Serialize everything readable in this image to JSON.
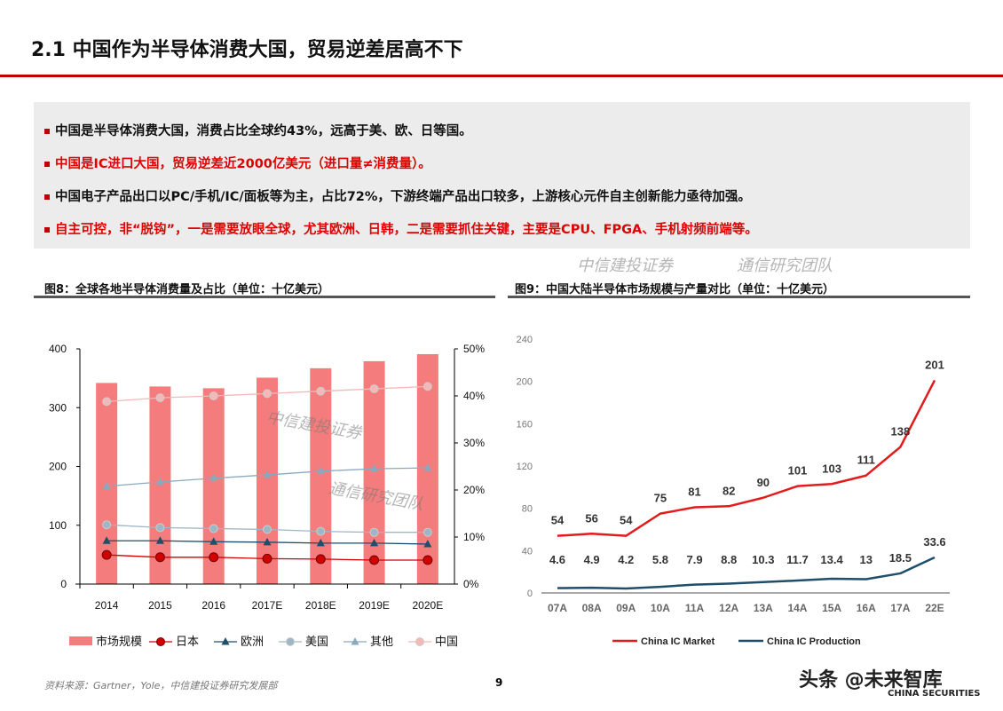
{
  "header": {
    "title": "2.1 中国作为半导体消费大国，贸易逆差居高不下"
  },
  "bullets": [
    {
      "text": "中国是半导体消费大国，消费占比全球约43%，远高于美、欧、日等国。",
      "color": "black"
    },
    {
      "text": "中国是IC进口大国，贸易逆差近2000亿美元（进口量≠消费量）。",
      "color": "red"
    },
    {
      "text": "中国电子产品出口以PC/手机/IC/面板等为主，占比72%，下游终端产品出口较多，上游核心元件自主创新能力亟待加强。",
      "color": "black"
    },
    {
      "text": "自主可控，非“脱钩”，一是需要放眼全球，尤其欧洲、日韩，二是需要抓住关键，主要是CPU、FPGA、手机射频前端等。",
      "color": "red"
    }
  ],
  "figures": {
    "fig8_title": "图8：全球各地半导体消费量及占比（单位：十亿美元）",
    "fig9_title": "图9：中国大陆半导体市场规模与产量对比（单位：十亿美元）"
  },
  "footer": {
    "source": "资料来源：Gartner，Yole，中信建投证券研究发展部",
    "page": "9"
  },
  "watermarks": {
    "w1": "中信建投证券",
    "w2": "通信研究团队",
    "logo": "头条 @未来智库",
    "logo_sub": "CHINA SECURITIES"
  },
  "chart_data": [
    {
      "type": "bar+line",
      "categories": [
        "2014",
        "2015",
        "2016",
        "2017E",
        "2018E",
        "2019E",
        "2020E"
      ],
      "ylim": [
        0,
        400
      ],
      "yticks": [
        "0",
        "100",
        "200",
        "300",
        "400"
      ],
      "y2lim": [
        0,
        50
      ],
      "y2ticks": [
        "0%",
        "10%",
        "20%",
        "30%",
        "40%",
        "50%"
      ],
      "bar_series": {
        "name": "市场规模",
        "values": [
          342,
          336,
          333,
          351,
          367,
          379,
          391
        ],
        "color": "#f47c7c"
      },
      "line_series": [
        {
          "name": "日本",
          "values": [
            6.2,
            5.7,
            5.7,
            5.4,
            5.3,
            5.1,
            5.1
          ],
          "color": "#d00000",
          "marker": "circle"
        },
        {
          "name": "欧洲",
          "values": [
            9.2,
            9.2,
            9.0,
            8.9,
            8.7,
            8.7,
            8.5
          ],
          "color": "#1f4e6b",
          "marker": "triangle"
        },
        {
          "name": "美国",
          "values": [
            12.6,
            12.0,
            11.8,
            11.6,
            11.2,
            11.0,
            11.0
          ],
          "color": "#9fb6c6",
          "marker": "circle"
        },
        {
          "name": "其他",
          "values": [
            20.8,
            21.7,
            22.5,
            23.2,
            24.0,
            24.5,
            24.7
          ],
          "color": "#8aa9bf",
          "marker": "triangle"
        },
        {
          "name": "中国",
          "values": [
            38.8,
            39.6,
            40.0,
            40.5,
            41.0,
            41.5,
            42.0
          ],
          "color": "#f4b8b8",
          "marker": "circle"
        }
      ],
      "legend": "bottom"
    },
    {
      "type": "line",
      "categories": [
        "07A",
        "08A",
        "09A",
        "10A",
        "11A",
        "12A",
        "13A",
        "14A",
        "15A",
        "16A",
        "17A",
        "22E"
      ],
      "ylim": [
        0,
        240
      ],
      "yticks": [
        "0",
        "40",
        "80",
        "120",
        "160",
        "200",
        "240"
      ],
      "series": [
        {
          "name": "China IC Market",
          "values": [
            54,
            56,
            54,
            75,
            81,
            82,
            90,
            101,
            103,
            111,
            138,
            201
          ],
          "labels": [
            "54",
            "56",
            "54",
            "75",
            "81",
            "82",
            "90",
            "101",
            "103",
            "111",
            "138",
            "201"
          ],
          "color": "#e31b1b"
        },
        {
          "name": "China IC Production",
          "values": [
            4.6,
            4.9,
            4.2,
            5.8,
            7.9,
            8.8,
            10.3,
            11.7,
            13.4,
            13,
            18.5,
            33.6
          ],
          "labels": [
            "4.6",
            "4.9",
            "4.2",
            "5.8",
            "7.9",
            "8.8",
            "10.3",
            "11.7",
            "13.4",
            "13",
            "18.5",
            "33.6"
          ],
          "color": "#1f4e6b"
        }
      ],
      "legend": "bottom"
    }
  ]
}
